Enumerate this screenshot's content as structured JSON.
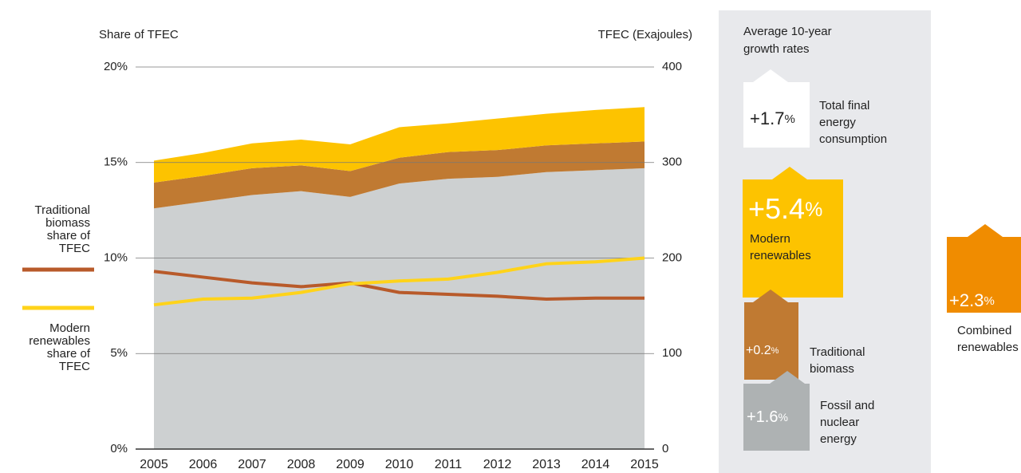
{
  "chart_data": {
    "type": "stacked_area_line",
    "left_axis_title": "Share of TFEC",
    "right_axis_title": "TFEC (Exajoules)",
    "categories": [
      "2005",
      "2006",
      "2007",
      "2008",
      "2009",
      "2010",
      "2011",
      "2012",
      "2013",
      "2014",
      "2015"
    ],
    "ylim": [
      0,
      20
    ],
    "yticks": [
      {
        "value": 0,
        "label": "0%"
      },
      {
        "value": 5,
        "label": "5%"
      },
      {
        "value": 10,
        "label": "10%"
      },
      {
        "value": 15,
        "label": "15%"
      },
      {
        "value": 20,
        "label": "20%"
      }
    ],
    "y2lim": [
      0,
      400
    ],
    "y2ticks": [
      0,
      100,
      200,
      300,
      400
    ],
    "grid": true,
    "areas": [
      {
        "name": "Fossil and nuclear energy",
        "color": "#cdd0d1",
        "axis": "y2",
        "values": [
          252,
          259,
          266,
          270,
          264,
          278,
          283,
          285,
          290,
          292,
          294
        ]
      },
      {
        "name": "Traditional biomass",
        "color": "#c07a32",
        "axis": "y2",
        "values": [
          27,
          27,
          28,
          27,
          27,
          27,
          28,
          28,
          28,
          28,
          28
        ]
      },
      {
        "name": "Modern renewables",
        "color": "#fdc300",
        "axis": "y2",
        "values": [
          23,
          24,
          26,
          27,
          28,
          32,
          30,
          33,
          33,
          35,
          36
        ]
      }
    ],
    "series": [
      {
        "name": [
          "Traditional",
          "biomass",
          "share of",
          "TFEC"
        ],
        "color": "#b85a2a",
        "values": [
          9.3,
          9.0,
          8.7,
          8.5,
          8.7,
          8.2,
          8.1,
          8.0,
          7.85,
          7.9,
          7.9
        ]
      },
      {
        "name": [
          "Modern",
          "renewables",
          "share of",
          "TFEC"
        ],
        "color": "#ffd31a",
        "values": [
          7.55,
          7.85,
          7.9,
          8.2,
          8.65,
          8.8,
          8.9,
          9.25,
          9.7,
          9.8,
          10.0
        ]
      }
    ]
  },
  "panel": {
    "title": [
      "Average 10-year",
      "growth rates"
    ],
    "boxes": [
      {
        "value": "+1.7",
        "unit": "%",
        "label": [
          "Total final",
          "energy",
          "consumption"
        ]
      },
      {
        "value": "+5.4",
        "unit": "%",
        "label": [
          "Modern",
          "renewables"
        ]
      },
      {
        "value": "+0.2",
        "unit": "%",
        "label": [
          "Traditional",
          "biomass"
        ]
      },
      {
        "value": "+1.6",
        "unit": "%",
        "label": [
          "Fossil and",
          "nuclear",
          "energy"
        ]
      },
      {
        "value": "+2.3",
        "unit": "%",
        "label": [
          "Combined",
          "renewables"
        ]
      }
    ]
  }
}
